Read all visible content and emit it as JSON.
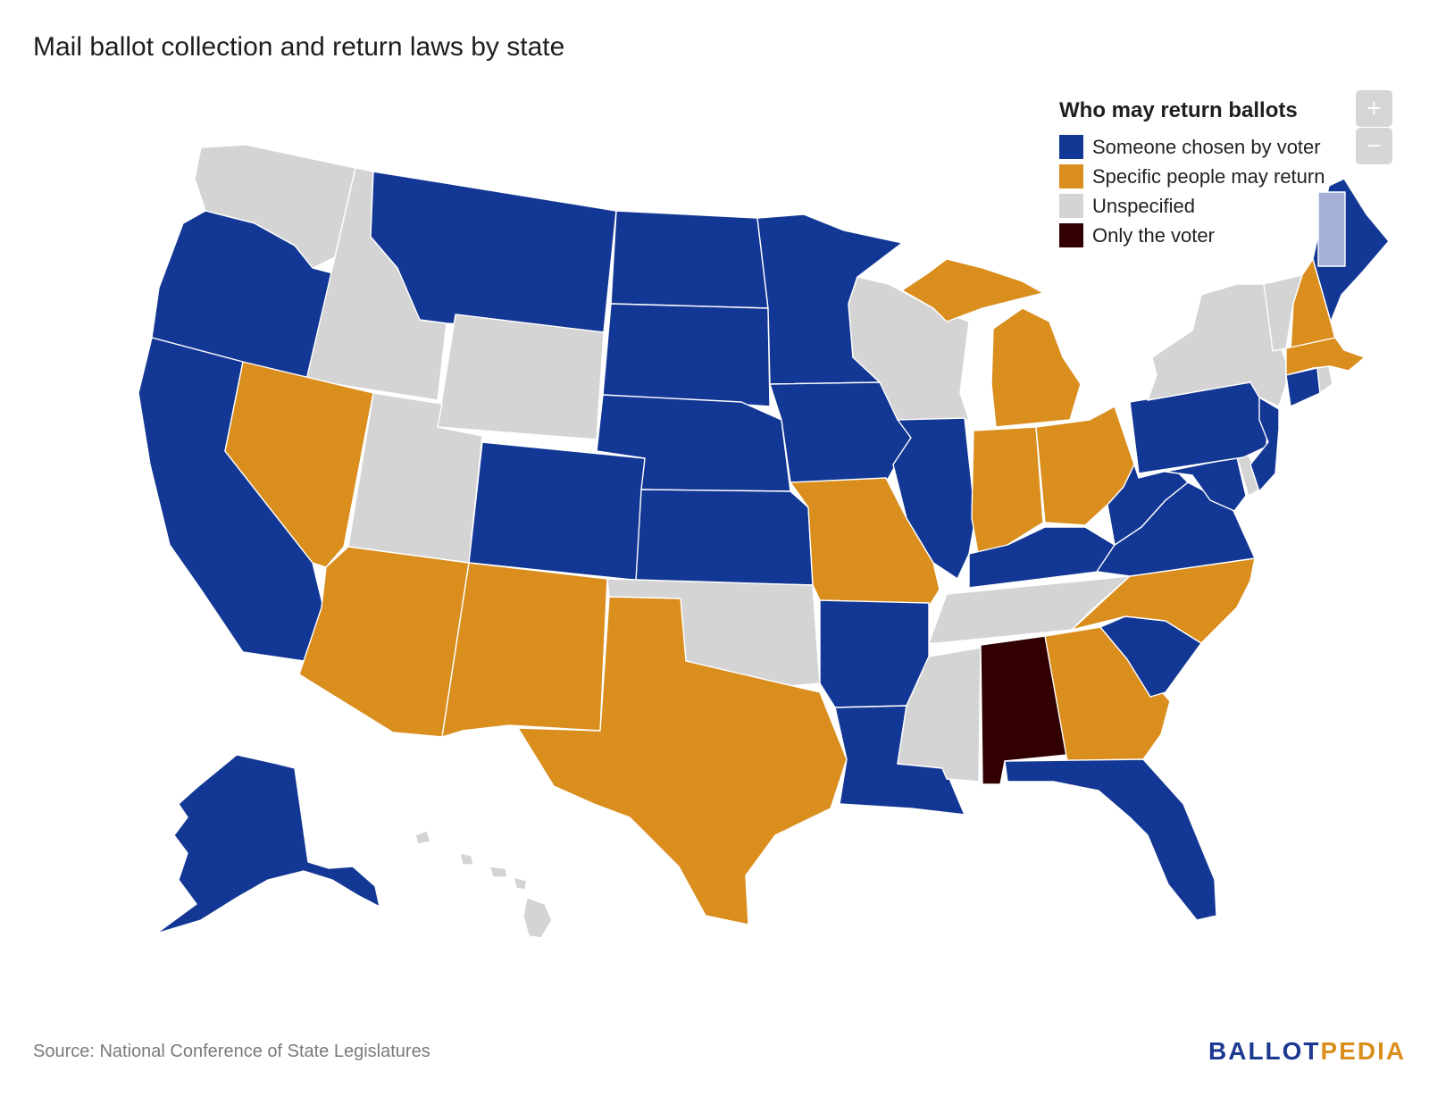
{
  "title": "Mail ballot collection and return laws by state",
  "legend": {
    "title": "Who may return ballots",
    "items": [
      {
        "key": "voter_chosen",
        "label": "Someone chosen by voter",
        "color": "#133794"
      },
      {
        "key": "specific",
        "label": "Specific people may return",
        "color": "#d98e1e"
      },
      {
        "key": "unspecified",
        "label": "Unspecified",
        "color": "#d4d4d4"
      },
      {
        "key": "only_voter",
        "label": "Only the voter",
        "color": "#320000"
      }
    ]
  },
  "highlight_color": "#a4b0d8",
  "zoom": {
    "in_label": "+",
    "out_label": "−"
  },
  "source": "Source: National Conference of State Legislatures",
  "logo": {
    "part1": "BALLOT",
    "part2": "PEDIA",
    "color1": "#1d3a93",
    "color2": "#d98e1e"
  },
  "states": {
    "WA": "unspecified",
    "OR": "voter_chosen",
    "CA": "voter_chosen",
    "ID": "unspecified",
    "NV": "specific",
    "MT": "voter_chosen",
    "WY": "unspecified",
    "UT": "unspecified",
    "AZ": "specific",
    "CO": "voter_chosen",
    "NM": "specific",
    "ND": "voter_chosen",
    "SD": "voter_chosen",
    "NE": "voter_chosen",
    "KS": "voter_chosen",
    "OK": "unspecified",
    "TX": "specific",
    "MN": "voter_chosen",
    "IA": "voter_chosen",
    "MO": "specific",
    "AR": "voter_chosen",
    "LA": "voter_chosen",
    "WI": "unspecified",
    "IL": "voter_chosen",
    "MS": "unspecified",
    "MI": "specific",
    "IN": "specific",
    "KY": "voter_chosen",
    "TN": "unspecified",
    "AL": "only_voter",
    "OH": "specific",
    "GA": "specific",
    "FL": "voter_chosen",
    "SC": "voter_chosen",
    "NC": "specific",
    "VA": "voter_chosen",
    "WV": "voter_chosen",
    "MD": "voter_chosen",
    "DE": "unspecified",
    "PA": "voter_chosen",
    "NJ": "voter_chosen",
    "NY": "unspecified",
    "CT": "voter_chosen",
    "RI": "unspecified",
    "MA": "specific",
    "VT": "unspecified",
    "NH": "specific",
    "ME": "voter_chosen",
    "AK": "voter_chosen",
    "HI": "unspecified"
  }
}
